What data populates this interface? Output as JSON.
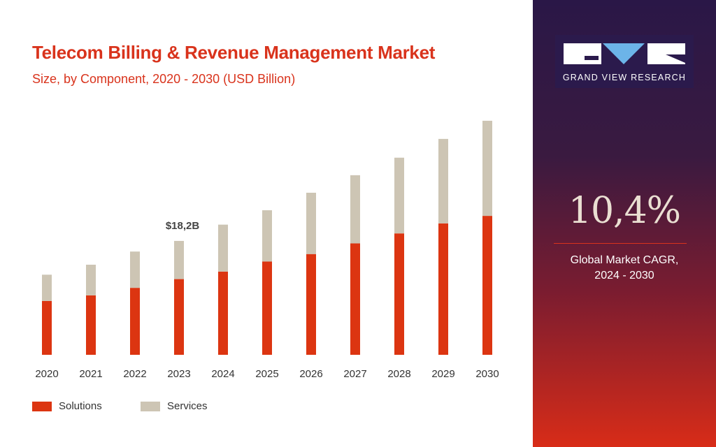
{
  "header": {
    "title": "Telecom Billing & Revenue Management Market",
    "subtitle": "Size, by Component, 2020 - 2030 (USD Billion)"
  },
  "chart_data": {
    "type": "bar",
    "stacked": true,
    "title": "Telecom Billing & Revenue Management Market",
    "subtitle": "Size, by Component, 2020 - 2030 (USD Billion)",
    "categories": [
      "2020",
      "2021",
      "2022",
      "2023",
      "2024",
      "2025",
      "2026",
      "2027",
      "2028",
      "2029",
      "2030"
    ],
    "series": [
      {
        "name": "Solutions",
        "color": "#dc3511",
        "values": [
          8.6,
          9.5,
          10.7,
          12.1,
          13.3,
          14.9,
          16.1,
          17.8,
          19.4,
          21.0,
          22.2
        ]
      },
      {
        "name": "Services",
        "color": "#cdc5b4",
        "values": [
          4.2,
          4.9,
          5.8,
          6.1,
          7.5,
          8.2,
          9.8,
          10.9,
          12.1,
          13.5,
          15.2
        ]
      }
    ],
    "annotations": [
      {
        "category": "2023",
        "text": "$18,2B"
      }
    ],
    "ylim": [
      0,
      40
    ],
    "grid": false,
    "legend": "bottom-left"
  },
  "side": {
    "brand": "GRAND VIEW RESEARCH",
    "cagr": "10,4%",
    "cagr_label_1": "Global Market CAGR,",
    "cagr_label_2": "2024 - 2030",
    "logo_accent": "#6cb4e8"
  }
}
